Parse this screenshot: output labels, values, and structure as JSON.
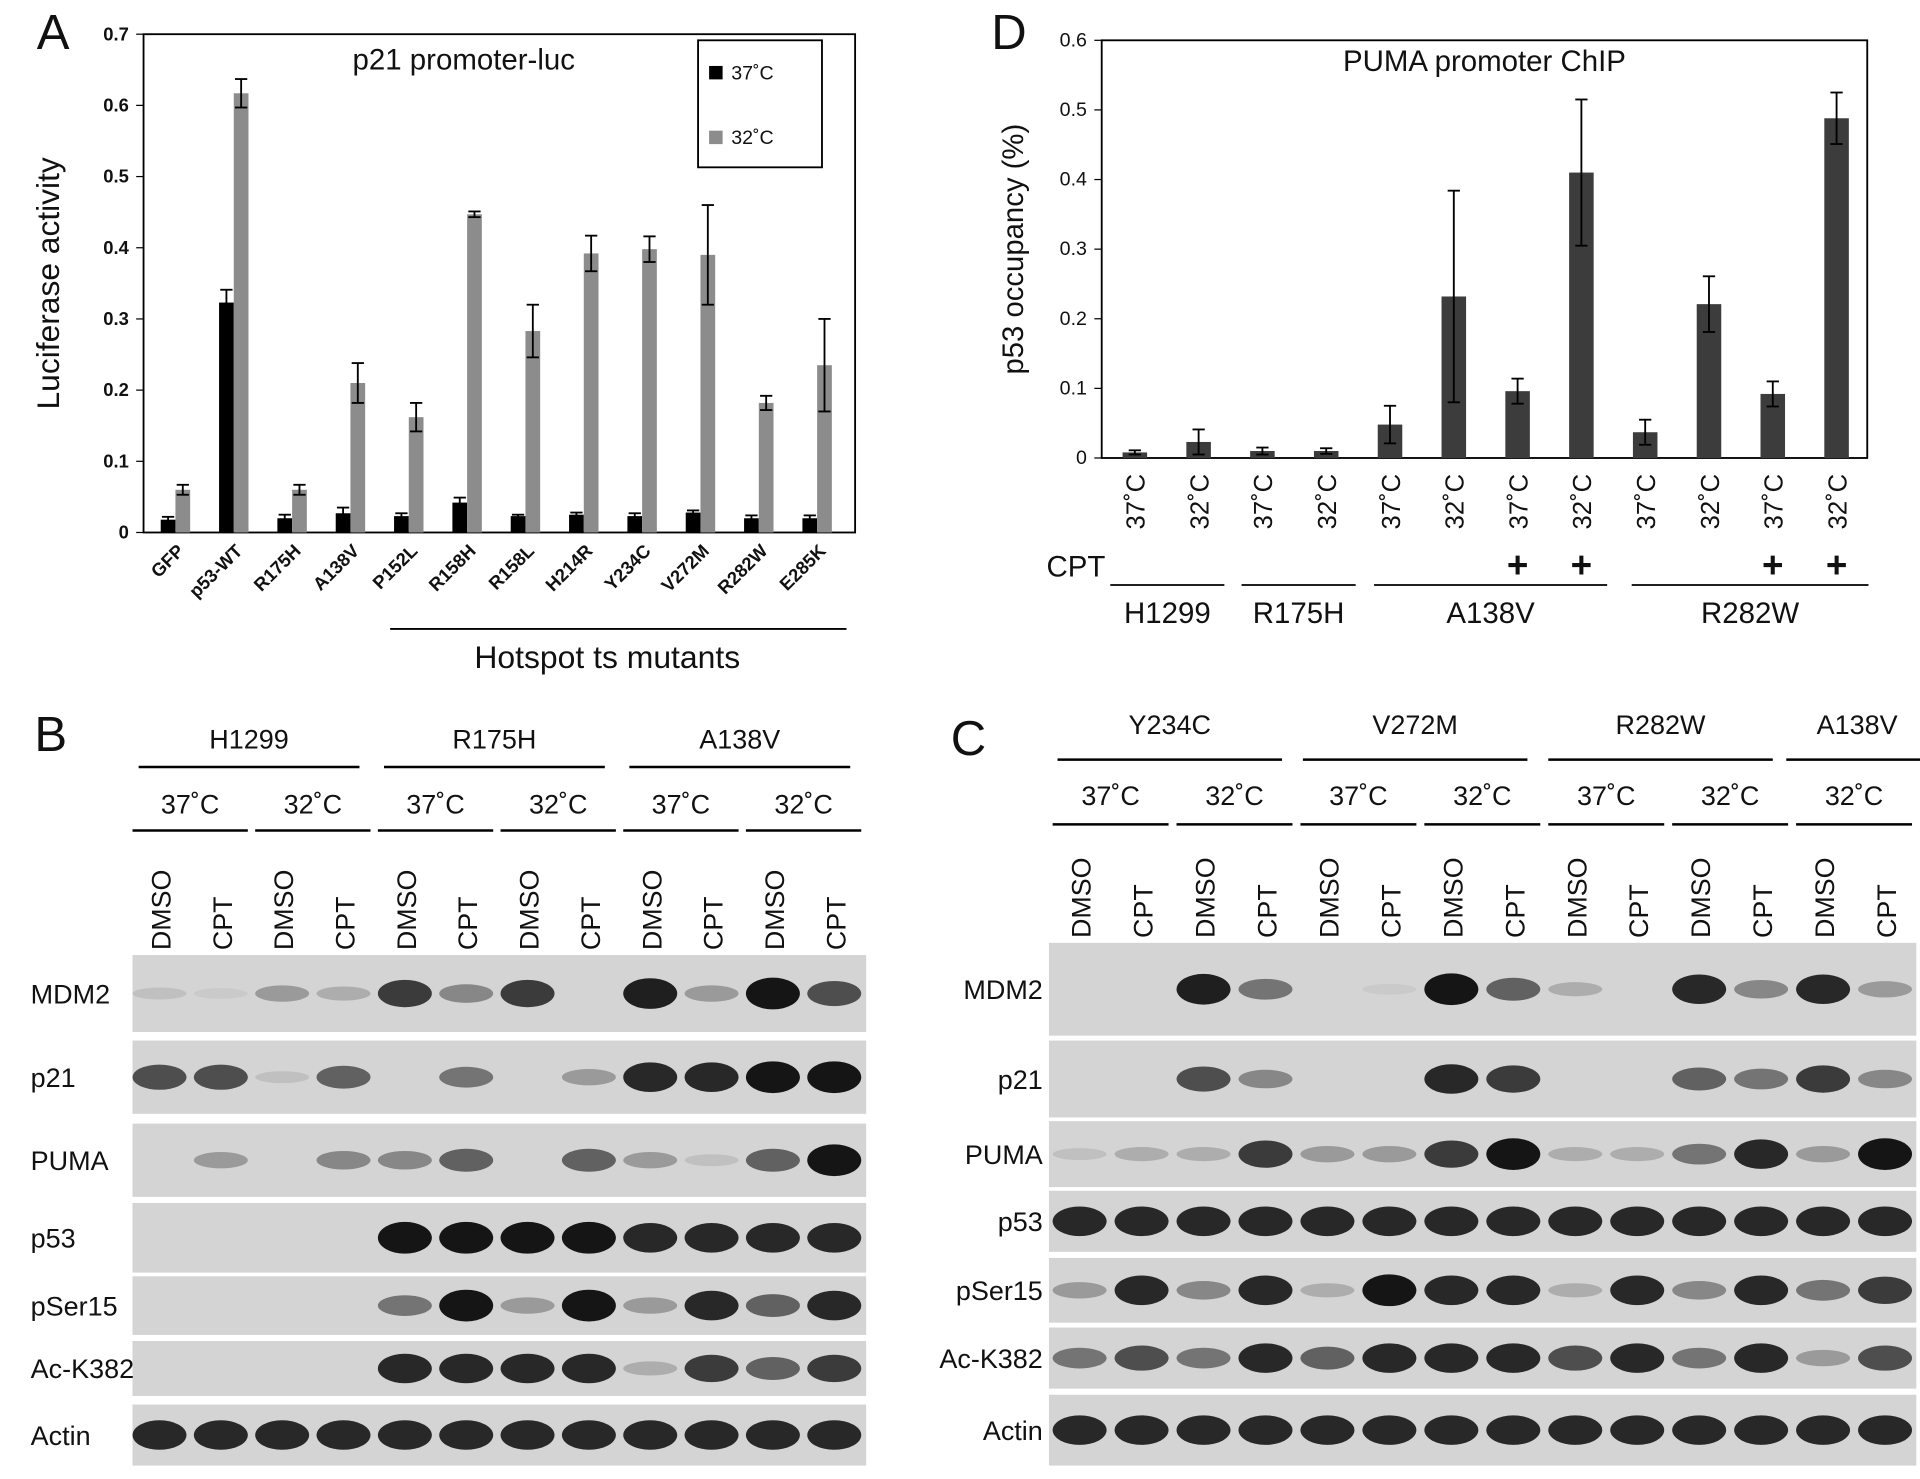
{
  "chart_data": [
    {
      "type": "bar",
      "panel": "A",
      "title": "p21 promoter-luc",
      "y_label": "Luciferase activity",
      "categories": [
        "GFP",
        "p53-WT",
        "R175H",
        "A138V",
        "P152L",
        "R158H",
        "R158L",
        "H214R",
        "Y234C",
        "V272M",
        "R282W",
        "E285K"
      ],
      "series": [
        {
          "name": "37˚C",
          "color": "#000000",
          "values": [
            0.018,
            0.323,
            0.02,
            0.027,
            0.023,
            0.042,
            0.023,
            0.025,
            0.023,
            0.028,
            0.02,
            0.02
          ],
          "errors": [
            0.004,
            0.018,
            0.005,
            0.008,
            0.004,
            0.007,
            0.002,
            0.003,
            0.004,
            0.003,
            0.004,
            0.004
          ]
        },
        {
          "name": "32˚C",
          "color": "#8c8c8c",
          "values": [
            0.06,
            0.617,
            0.06,
            0.21,
            0.162,
            0.447,
            0.283,
            0.392,
            0.398,
            0.39,
            0.182,
            0.235
          ],
          "errors": [
            0.007,
            0.02,
            0.007,
            0.028,
            0.02,
            0.004,
            0.037,
            0.025,
            0.018,
            0.07,
            0.01,
            0.065
          ]
        }
      ],
      "group_label": "Hotspot ts mutants",
      "ylim": [
        0,
        0.7
      ],
      "yticks": [
        0,
        0.1,
        0.2,
        0.3,
        0.4,
        0.5,
        0.6,
        0.7
      ],
      "legend": "top-right"
    },
    {
      "type": "bar",
      "panel": "D",
      "title": "PUMA promoter ChIP",
      "y_label": "p53 occupancy (%)",
      "categories": [
        "37˚C",
        "32˚C",
        "37˚C",
        "32˚C",
        "37˚C",
        "32˚C",
        "37˚C",
        "32˚C",
        "37˚C",
        "32˚C",
        "37˚C",
        "32˚C"
      ],
      "series": [
        {
          "color": "#3c3c3c",
          "values": [
            0.008,
            0.023,
            0.01,
            0.01,
            0.048,
            0.232,
            0.096,
            0.41,
            0.037,
            0.221,
            0.092,
            0.488
          ],
          "errors": [
            0.003,
            0.018,
            0.005,
            0.004,
            0.027,
            0.152,
            0.018,
            0.105,
            0.018,
            0.04,
            0.018,
            0.037
          ]
        }
      ],
      "treatment_label": "CPT",
      "treatment_marks": [
        null,
        null,
        null,
        null,
        null,
        null,
        "+",
        "+",
        null,
        null,
        "+",
        "+"
      ],
      "groups": [
        "H1299",
        "R175H",
        "A138V",
        "R282W"
      ],
      "ylim": [
        0,
        0.6
      ],
      "yticks": [
        0,
        0.1,
        0.2,
        0.3,
        0.4,
        0.5,
        0.6
      ]
    }
  ],
  "blots": [
    {
      "panel": "B",
      "lines": [
        {
          "name": "H1299",
          "temperatures": [
            "37˚C",
            "32˚C"
          ]
        },
        {
          "name": "R175H",
          "temperatures": [
            "37˚C",
            "32˚C"
          ]
        },
        {
          "name": "A138V",
          "temperatures": [
            "37˚C",
            "32˚C"
          ]
        }
      ],
      "lanes": [
        "DMSO",
        "CPT",
        "DMSO",
        "CPT",
        "DMSO",
        "CPT",
        "DMSO",
        "CPT",
        "DMSO",
        "CPT",
        "DMSO",
        "CPT"
      ],
      "rows": [
        "MDM2",
        "p21",
        "PUMA",
        "p53",
        "pSer15",
        "Ac-K382",
        "Actin"
      ]
    },
    {
      "panel": "C",
      "lines": [
        {
          "name": "Y234C",
          "temperatures": [
            "37˚C",
            "32˚C"
          ]
        },
        {
          "name": "V272M",
          "temperatures": [
            "37˚C",
            "32˚C"
          ]
        },
        {
          "name": "R282W",
          "temperatures": [
            "37˚C",
            "32˚C"
          ]
        },
        {
          "name": "A138V",
          "temperatures": [
            "32˚C"
          ]
        }
      ],
      "lanes": [
        "DMSO",
        "CPT",
        "DMSO",
        "CPT",
        "DMSO",
        "CPT",
        "DMSO",
        "CPT",
        "DMSO",
        "CPT",
        "DMSO",
        "CPT",
        "DMSO",
        "CPT"
      ],
      "rows": [
        "MDM2",
        "p21",
        "PUMA",
        "p53",
        "pSer15",
        "Ac-K382",
        "Actin"
      ]
    }
  ]
}
